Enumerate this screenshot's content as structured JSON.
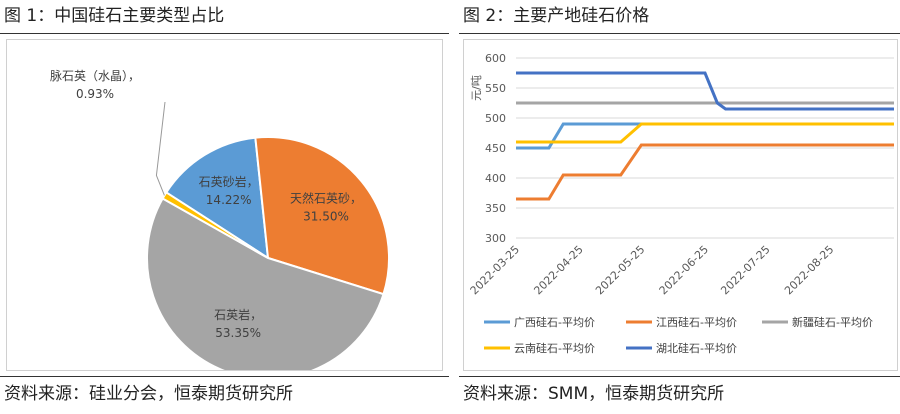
{
  "left": {
    "title": "图 1：中国硅石主要类型占比",
    "source": "资料来源：硅业分会，恒泰期货研究所"
  },
  "right": {
    "title": "图 2：主要产地硅石价格",
    "source": "资料来源：SMM，恒泰期货研究所"
  },
  "chart_data": [
    {
      "type": "pie",
      "slices": [
        {
          "name": "石英砂岩",
          "value": 14.22,
          "label": "14.22%",
          "color": "#5B9BD5"
        },
        {
          "name": "天然石英砂",
          "value": 31.5,
          "label": "31.50%",
          "color": "#ED7D31"
        },
        {
          "name": "石英岩",
          "value": 53.35,
          "label": "53.35%",
          "color": "#A5A5A5"
        },
        {
          "name": "脉石英（水晶）",
          "value": 0.93,
          "label": "0.93%",
          "color": "#FFC000"
        }
      ]
    },
    {
      "type": "line",
      "ylabel": "元/吨",
      "ylim": [
        300,
        600
      ],
      "yticks": [
        300,
        350,
        400,
        450,
        500,
        550,
        600
      ],
      "xticks": [
        "2022-03-25",
        "2022-04-25",
        "2022-05-25",
        "2022-06-25",
        "2022-07-25",
        "2022-08-25"
      ],
      "xrange": [
        "2022-03-25",
        "2022-09-25"
      ],
      "series": [
        {
          "name": "广西硅石-平均价",
          "color": "#5B9BD5",
          "points": [
            [
              "2022-03-25",
              450
            ],
            [
              "2022-04-10",
              450
            ],
            [
              "2022-04-17",
              490
            ],
            [
              "2022-09-25",
              490
            ]
          ]
        },
        {
          "name": "江西硅石-平均价",
          "color": "#ED7D31",
          "points": [
            [
              "2022-03-25",
              365
            ],
            [
              "2022-04-10",
              365
            ],
            [
              "2022-04-17",
              405
            ],
            [
              "2022-05-15",
              405
            ],
            [
              "2022-05-25",
              455
            ],
            [
              "2022-09-25",
              455
            ]
          ]
        },
        {
          "name": "新疆硅石-平均价",
          "color": "#A5A5A5",
          "points": [
            [
              "2022-03-25",
              525
            ],
            [
              "2022-09-25",
              525
            ]
          ]
        },
        {
          "name": "云南硅石-平均价",
          "color": "#FFC000",
          "points": [
            [
              "2022-03-25",
              460
            ],
            [
              "2022-05-15",
              460
            ],
            [
              "2022-05-25",
              490
            ],
            [
              "2022-09-25",
              490
            ]
          ]
        },
        {
          "name": "湖北硅石-平均价",
          "color": "#4472C4",
          "points": [
            [
              "2022-03-25",
              575
            ],
            [
              "2022-06-25",
              575
            ],
            [
              "2022-07-01",
              525
            ],
            [
              "2022-07-05",
              515
            ],
            [
              "2022-09-25",
              515
            ]
          ]
        }
      ]
    }
  ]
}
